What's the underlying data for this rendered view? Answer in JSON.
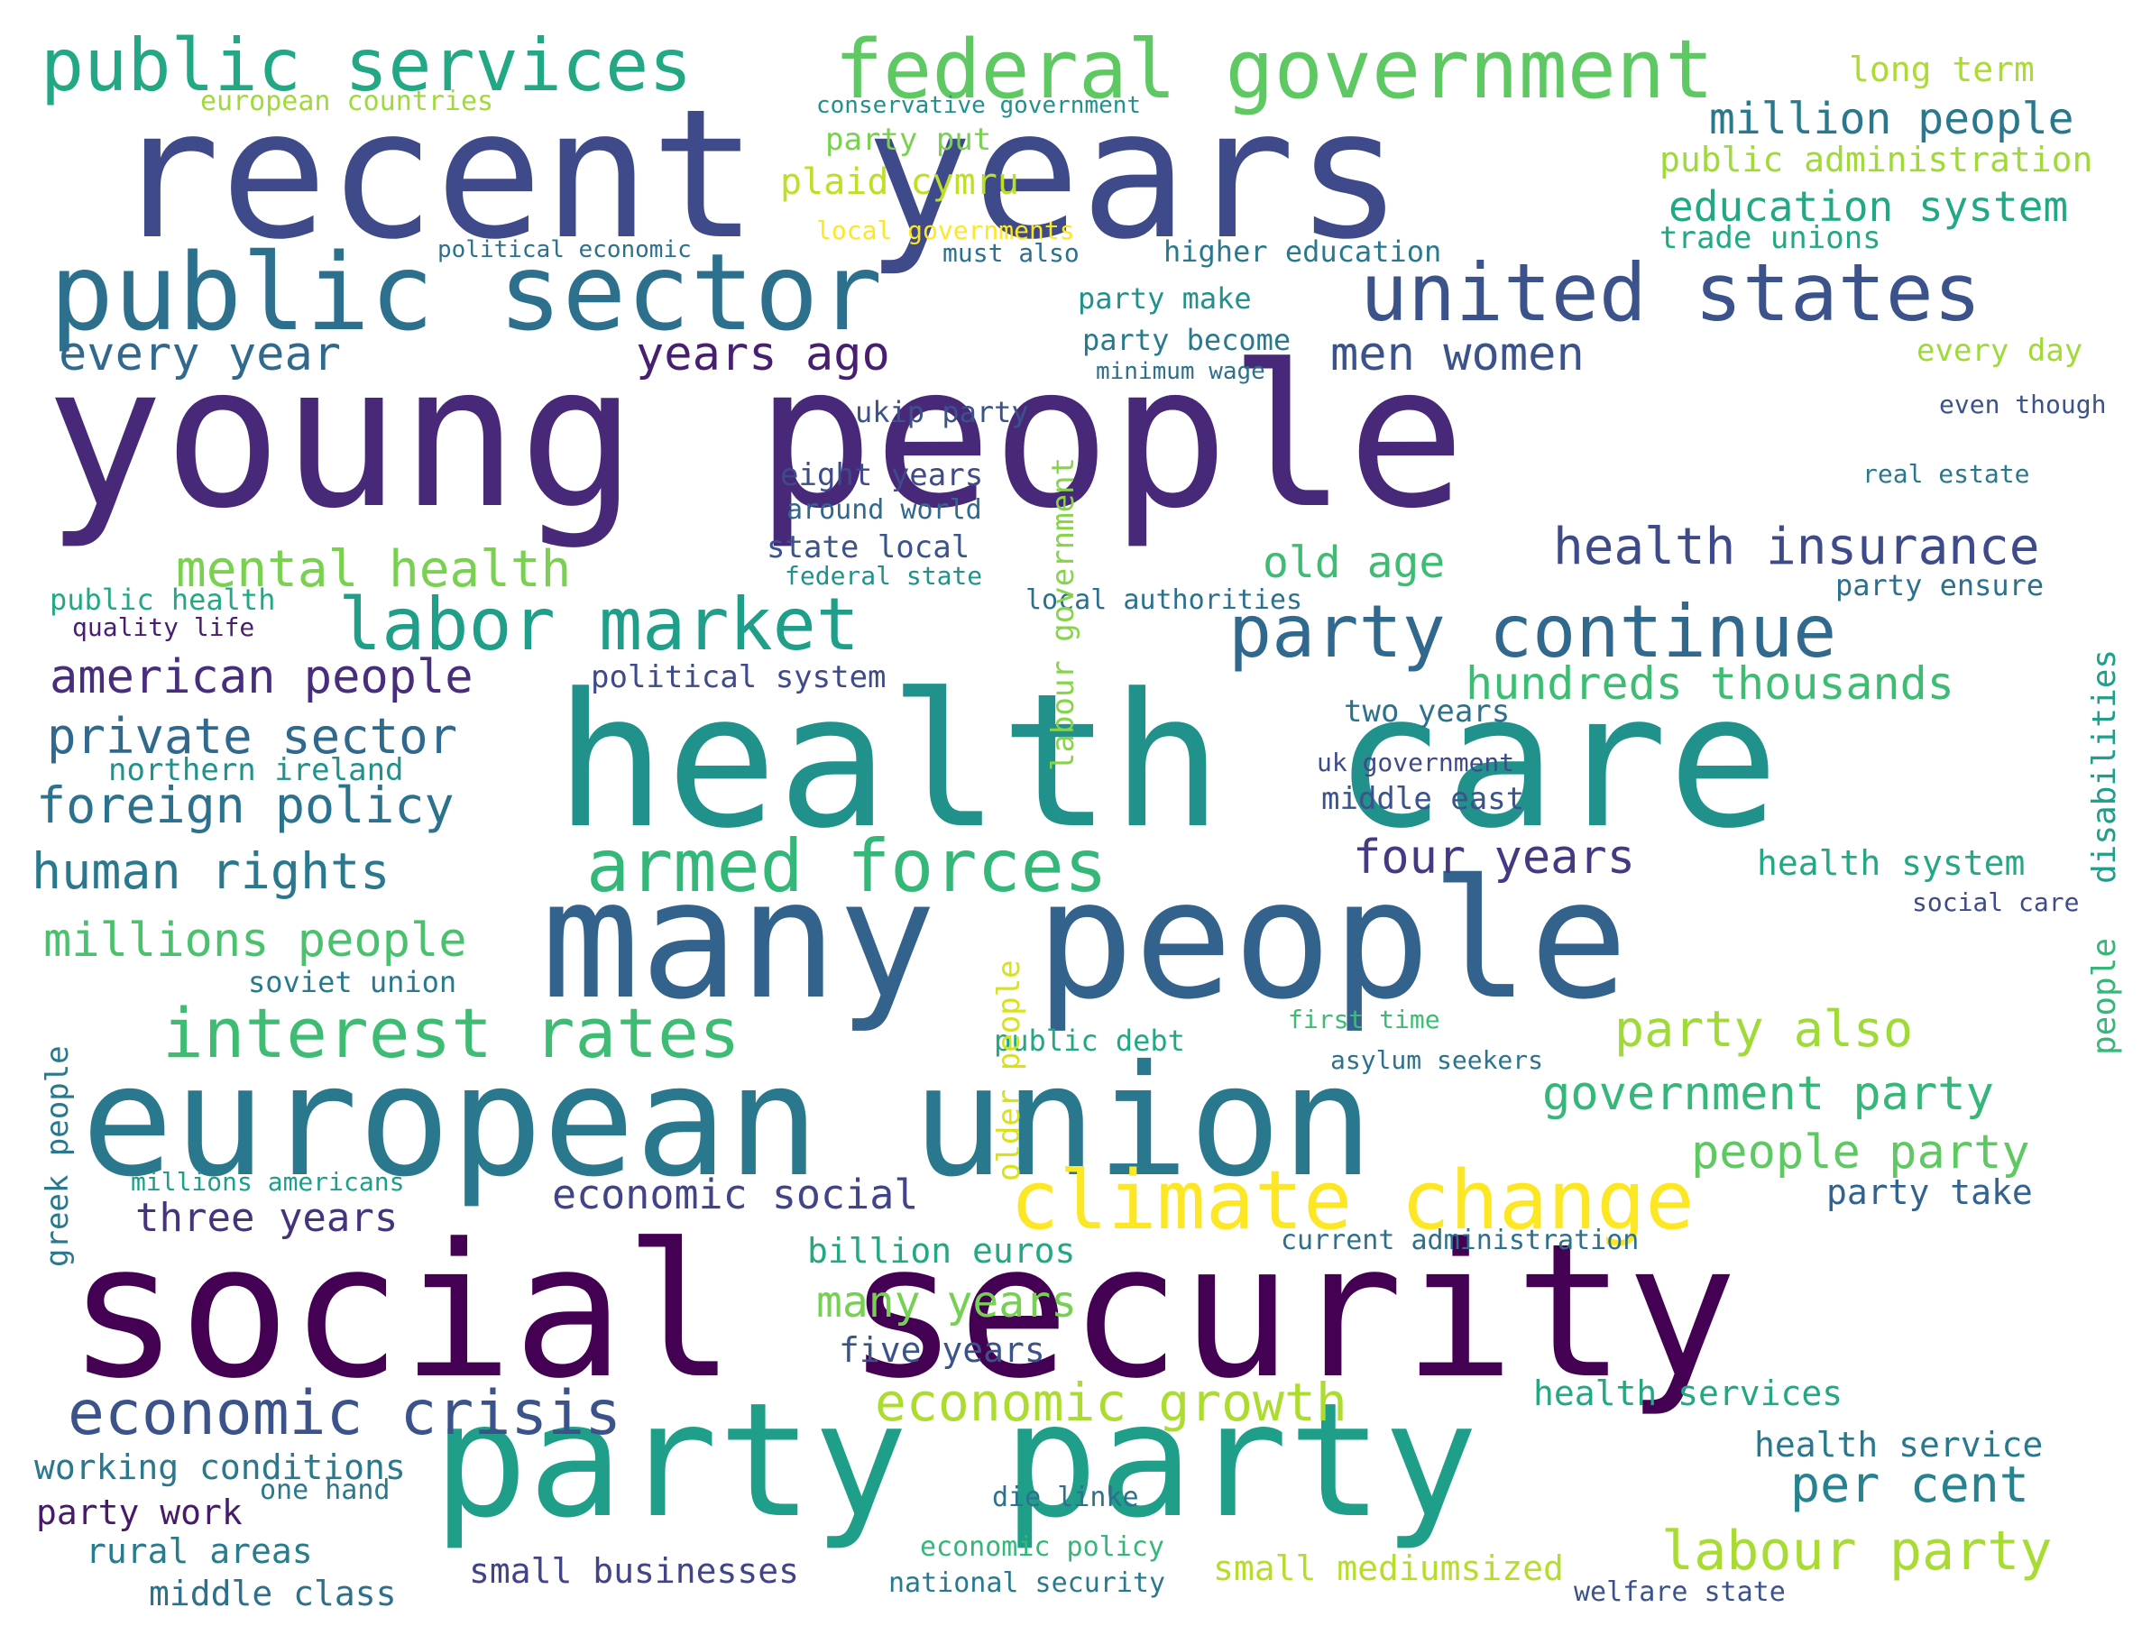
{
  "cloud": {
    "words": [
      {
        "text": "young people",
        "color": "#482878"
      },
      {
        "text": "recent years",
        "color": "#3e4a89"
      },
      {
        "text": "social security",
        "color": "#440154"
      },
      {
        "text": "health care",
        "color": "#21918c"
      },
      {
        "text": "many people",
        "color": "#33638d"
      },
      {
        "text": "european union",
        "color": "#2a788e"
      },
      {
        "text": "party party",
        "color": "#1f9e89"
      },
      {
        "text": "public sector",
        "color": "#2d708e"
      },
      {
        "text": "federal government",
        "color": "#5ec962"
      },
      {
        "text": "public services",
        "color": "#22a884"
      },
      {
        "text": "united states",
        "color": "#3b528b"
      },
      {
        "text": "climate change",
        "color": "#fde725"
      },
      {
        "text": "armed forces",
        "color": "#35b779"
      },
      {
        "text": "labor market",
        "color": "#1f9e89"
      },
      {
        "text": "interest rates",
        "color": "#3fbc73"
      },
      {
        "text": "economic crisis",
        "color": "#3b528b"
      },
      {
        "text": "party continue",
        "color": "#31688e"
      },
      {
        "text": "economic growth",
        "color": "#addc30"
      },
      {
        "text": "labour party",
        "color": "#a8db34"
      },
      {
        "text": "health insurance",
        "color": "#3e4a89"
      },
      {
        "text": "mental health",
        "color": "#7ad151"
      },
      {
        "text": "hundreds thousands",
        "color": "#3fbc73"
      },
      {
        "text": "private sector",
        "color": "#31688e"
      },
      {
        "text": "party also",
        "color": "#a0da39"
      },
      {
        "text": "government party",
        "color": "#35b779"
      },
      {
        "text": "american people",
        "color": "#472d7b"
      },
      {
        "text": "years ago",
        "color": "#481f70"
      },
      {
        "text": "four years",
        "color": "#443983"
      },
      {
        "text": "foreign policy",
        "color": "#2c728e"
      },
      {
        "text": "human rights",
        "color": "#2a788e"
      },
      {
        "text": "millions people",
        "color": "#4ac16d"
      },
      {
        "text": "people party",
        "color": "#5ec962"
      },
      {
        "text": "per cent",
        "color": "#26828e"
      },
      {
        "text": "men women",
        "color": "#3b528b"
      },
      {
        "text": "every year",
        "color": "#31688e"
      },
      {
        "text": "million people",
        "color": "#2a788e"
      },
      {
        "text": "three years",
        "color": "#46337e"
      },
      {
        "text": "many years",
        "color": "#75d054"
      },
      {
        "text": "economic social",
        "color": "#414487"
      },
      {
        "text": "old age",
        "color": "#3fbc73"
      },
      {
        "text": "education system",
        "color": "#22a884"
      },
      {
        "text": "plaid cymru",
        "color": "#bddf26"
      },
      {
        "text": "long term",
        "color": "#addc30"
      },
      {
        "text": "public administration",
        "color": "#a0da39"
      },
      {
        "text": "working conditions",
        "color": "#2a788e"
      },
      {
        "text": "party work",
        "color": "#481a6c"
      },
      {
        "text": "small mediumsized",
        "color": "#b5de2b"
      },
      {
        "text": "small businesses",
        "color": "#414487"
      },
      {
        "text": "rural areas",
        "color": "#287c8e"
      },
      {
        "text": "middle class",
        "color": "#2d708e"
      },
      {
        "text": "health service",
        "color": "#2a788e"
      },
      {
        "text": "health services",
        "color": "#22a884"
      },
      {
        "text": "health system",
        "color": "#22a884"
      },
      {
        "text": "social care",
        "color": "#3e4a89"
      },
      {
        "text": "party take",
        "color": "#33638d"
      },
      {
        "text": "billion euros",
        "color": "#22a884"
      },
      {
        "text": "five years",
        "color": "#3b528b"
      },
      {
        "text": "economic policy",
        "color": "#35b779"
      },
      {
        "text": "national security",
        "color": "#2a788e"
      },
      {
        "text": "welfare state",
        "color": "#3b528b"
      },
      {
        "text": "die linke",
        "color": "#2c728e"
      },
      {
        "text": "one hand",
        "color": "#2a788e"
      },
      {
        "text": "current administration",
        "color": "#2d708e"
      },
      {
        "text": "political system",
        "color": "#3e4a89"
      },
      {
        "text": "two years",
        "color": "#2d708e"
      },
      {
        "text": "uk government",
        "color": "#3e4a89"
      },
      {
        "text": "middle east",
        "color": "#3b528b"
      },
      {
        "text": "northern ireland",
        "color": "#21918c"
      },
      {
        "text": "public health",
        "color": "#22a884"
      },
      {
        "text": "quality life",
        "color": "#481f70"
      },
      {
        "text": "soviet union",
        "color": "#2a788e"
      },
      {
        "text": "millions americans",
        "color": "#1f9e89"
      },
      {
        "text": "public debt",
        "color": "#22a884"
      },
      {
        "text": "asylum seekers",
        "color": "#2c728e"
      },
      {
        "text": "first time",
        "color": "#3fbc73"
      },
      {
        "text": "state local",
        "color": "#3b528b"
      },
      {
        "text": "federal state",
        "color": "#21918c"
      },
      {
        "text": "local authorities",
        "color": "#2d708e"
      },
      {
        "text": "eight years",
        "color": "#3e4a89"
      },
      {
        "text": "around world",
        "color": "#31688e"
      },
      {
        "text": "ukip party",
        "color": "#3b528b"
      },
      {
        "text": "party make",
        "color": "#21918c"
      },
      {
        "text": "party become",
        "color": "#2a788e"
      },
      {
        "text": "minimum wage",
        "color": "#2d708e"
      },
      {
        "text": "higher education",
        "color": "#2a788e"
      },
      {
        "text": "must also",
        "color": "#2d708e"
      },
      {
        "text": "local governments",
        "color": "#fde725"
      },
      {
        "text": "party put",
        "color": "#7ad151"
      },
      {
        "text": "conservative government",
        "color": "#21918c"
      },
      {
        "text": "european countries",
        "color": "#a0da39"
      },
      {
        "text": "political economic",
        "color": "#2d708e"
      },
      {
        "text": "trade unions",
        "color": "#22a884"
      },
      {
        "text": "every day",
        "color": "#a0da39"
      },
      {
        "text": "even though",
        "color": "#3b528b"
      },
      {
        "text": "real estate",
        "color": "#2a788e"
      },
      {
        "text": "party ensure",
        "color": "#2d708e"
      },
      {
        "text": "labour government",
        "color": "#86d549"
      },
      {
        "text": "disabilities",
        "color": "#1f9e89"
      },
      {
        "text": "people",
        "color": "#35b779"
      },
      {
        "text": "older people",
        "color": "#d8e219"
      },
      {
        "text": "greek people",
        "color": "#2a788e"
      }
    ]
  }
}
